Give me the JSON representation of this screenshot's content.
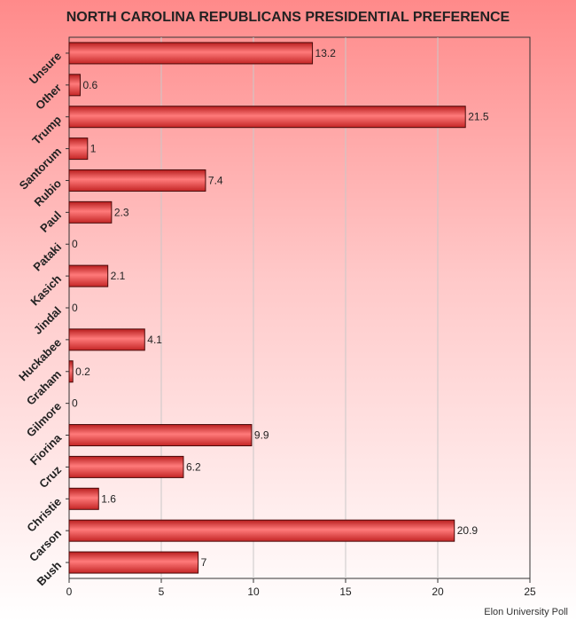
{
  "chart_data": {
    "type": "bar",
    "orientation": "horizontal",
    "title": "NORTH CAROLINA REPUBLICANS PRESIDENTIAL PREFERENCE",
    "source": "Elon University Poll",
    "categories": [
      "Unsure",
      "Other",
      "Trump",
      "Santorum",
      "Rubio",
      "Paul",
      "Pataki",
      "Kasich",
      "Jindal",
      "Huckabee",
      "Graham",
      "Gilmore",
      "Fiorina",
      "Cruz",
      "Christie",
      "Carson",
      "Bush"
    ],
    "values": [
      13.2,
      0.6,
      21.5,
      1,
      7.4,
      2.3,
      0,
      2.1,
      0,
      4.1,
      0.2,
      0,
      9.9,
      6.2,
      1.6,
      20.9,
      7
    ],
    "value_labels": [
      "13.2",
      "0.6",
      "21.5",
      "1",
      "7.4",
      "2.3",
      "0",
      "2.1",
      "0",
      "4.1",
      "0.2",
      "0",
      "9.9",
      "6.2",
      "1.6",
      "20.9",
      "7"
    ],
    "xlim": [
      0,
      25
    ],
    "xticks": [
      0,
      5,
      10,
      15,
      20,
      25
    ],
    "xlabel": "",
    "ylabel": "",
    "grid": true,
    "legend": "none",
    "bar_color": "#e84848",
    "background_top": "#ff8a8a",
    "background_bottom": "#ffffff"
  }
}
